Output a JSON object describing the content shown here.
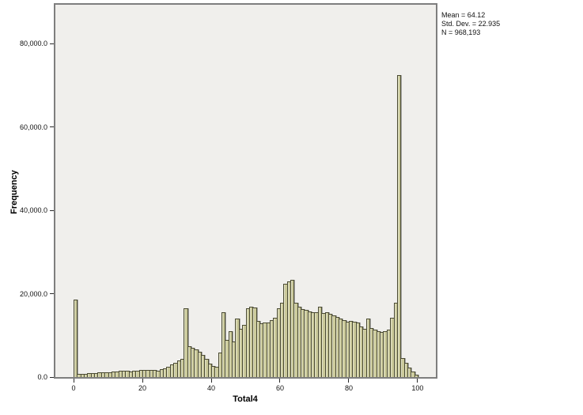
{
  "figure": {
    "background": "#ffffff",
    "panel_bg": "#f0efec",
    "frame_color": "#7e7e7e"
  },
  "y_axis": {
    "title": "Frequency",
    "tick_labels": [
      "0.0",
      "20,000.0",
      "40,000.0",
      "60,000.0",
      "80,000.0"
    ],
    "tick_values": [
      0,
      20000,
      40000,
      60000,
      80000
    ]
  },
  "x_axis": {
    "title": "Total4",
    "tick_labels": [
      "0",
      "20",
      "40",
      "60",
      "80",
      "100"
    ],
    "tick_values": [
      0,
      20,
      40,
      60,
      80,
      100
    ]
  },
  "stats": {
    "lines": [
      "Mean = 64.12",
      "Std. Dev. = 22.935",
      "N = 968,193"
    ]
  },
  "chart_data": {
    "type": "bar",
    "subtype": "histogram",
    "title": "",
    "xlabel": "Total4",
    "ylabel": "Frequency",
    "bin_width": 1,
    "bin_start": [
      0,
      1,
      2,
      3,
      4,
      5,
      6,
      7,
      8,
      9,
      10,
      11,
      12,
      13,
      14,
      15,
      16,
      17,
      18,
      19,
      20,
      21,
      22,
      23,
      24,
      25,
      26,
      27,
      28,
      29,
      30,
      31,
      32,
      33,
      34,
      35,
      36,
      37,
      38,
      39,
      40,
      41,
      42,
      43,
      44,
      45,
      46,
      47,
      48,
      49,
      50,
      51,
      52,
      53,
      54,
      55,
      56,
      57,
      58,
      59,
      60,
      61,
      62,
      63,
      64,
      65,
      66,
      67,
      68,
      69,
      70,
      71,
      72,
      73,
      74,
      75,
      76,
      77,
      78,
      79,
      80,
      81,
      82,
      83,
      84,
      85,
      86,
      87,
      88,
      89,
      90,
      91,
      92,
      93,
      94,
      95,
      96,
      97,
      98,
      99
    ],
    "values": [
      18500,
      750,
      800,
      850,
      900,
      950,
      1000,
      1050,
      1100,
      1150,
      1200,
      1250,
      1350,
      1450,
      1500,
      1450,
      1400,
      1450,
      1550,
      1650,
      1700,
      1800,
      1800,
      1700,
      1600,
      1850,
      2100,
      2500,
      3000,
      3400,
      3900,
      4300,
      16500,
      7300,
      7000,
      6600,
      6100,
      5300,
      4300,
      3300,
      2700,
      2500,
      5800,
      15500,
      9000,
      11000,
      8500,
      14000,
      11500,
      12500,
      16500,
      16800,
      16600,
      13500,
      12800,
      13100,
      13100,
      13700,
      14300,
      16500,
      17800,
      22400,
      22900,
      23300,
      17900,
      16800,
      16400,
      16100,
      15800,
      15600,
      15600,
      16900,
      15300,
      15500,
      15100,
      14800,
      14500,
      14000,
      13600,
      13300,
      13500,
      13200,
      13000,
      12200,
      11500,
      14100,
      11800,
      11300,
      11000,
      10900,
      11050,
      11300,
      14300,
      17800,
      72500,
      4500,
      3400,
      2300,
      1400,
      550
    ],
    "xlim": [
      -5.3,
      105.3
    ],
    "ylim": [
      0,
      89300
    ],
    "grid": false,
    "legend": false,
    "bar_fill": "#cbca9b",
    "bar_border": "#4a4a31",
    "annotations": [
      "Mean = 64.12",
      "Std. Dev. = 22.935",
      "N = 968,193"
    ]
  }
}
